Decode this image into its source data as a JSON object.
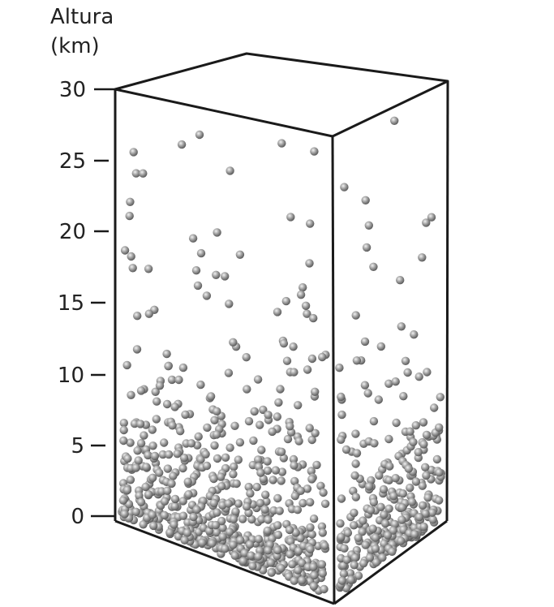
{
  "axis": {
    "title_line1": "Altura",
    "title_line2": "(km)",
    "ticks": [
      "30",
      "25",
      "20",
      "15",
      "10",
      "5",
      "0"
    ]
  },
  "colors": {
    "particle": "#9a9a9a",
    "particle_highlight": "#f2f2f2",
    "particle_shadow": "#5a5a5a",
    "outline": "#1a1a1a",
    "text": "#222222"
  }
}
